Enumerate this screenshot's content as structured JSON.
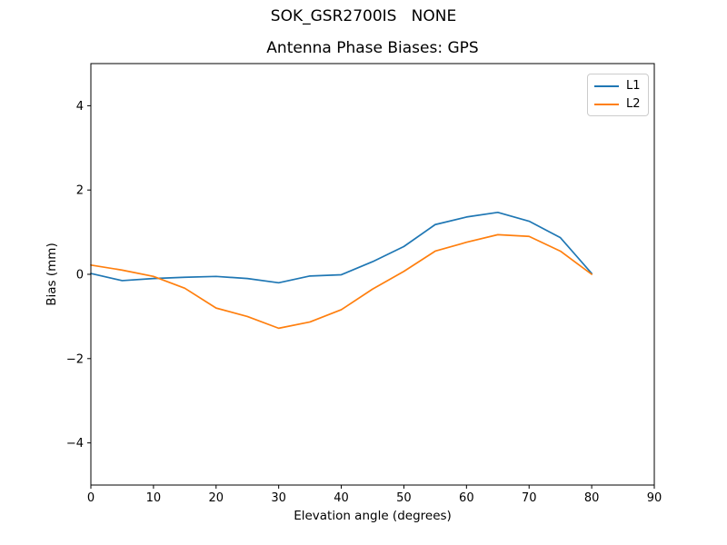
{
  "chart_data": {
    "type": "line",
    "suptitle": "SOK_GSR2700IS   NONE",
    "title": "Antenna Phase Biases: GPS",
    "xlabel": "Elevation angle (degrees)",
    "ylabel": "Bias (mm)",
    "xlim": [
      0,
      90
    ],
    "ylim": [
      -5,
      5
    ],
    "xticks": [
      0,
      10,
      20,
      30,
      40,
      50,
      60,
      70,
      80,
      90
    ],
    "yticks": [
      -4,
      -2,
      0,
      2,
      4
    ],
    "grid": false,
    "background": "#ffffff",
    "axis_color": "#000000",
    "legend": {
      "position": "upper right"
    },
    "x": [
      0,
      5,
      10,
      15,
      20,
      25,
      30,
      35,
      40,
      45,
      50,
      55,
      60,
      65,
      70,
      75,
      80
    ],
    "series": [
      {
        "name": "L1",
        "color": "#1f77b4",
        "values": [
          0.02,
          -0.15,
          -0.1,
          -0.07,
          -0.05,
          -0.1,
          -0.2,
          -0.04,
          -0.01,
          0.3,
          0.66,
          1.18,
          1.36,
          1.47,
          1.26,
          0.87,
          0.02
        ]
      },
      {
        "name": "L2",
        "color": "#ff7f0e",
        "values": [
          0.22,
          0.1,
          -0.05,
          -0.33,
          -0.8,
          -1.0,
          -1.28,
          -1.13,
          -0.84,
          -0.35,
          0.07,
          0.55,
          0.76,
          0.94,
          0.9,
          0.55,
          0.0
        ]
      }
    ]
  }
}
